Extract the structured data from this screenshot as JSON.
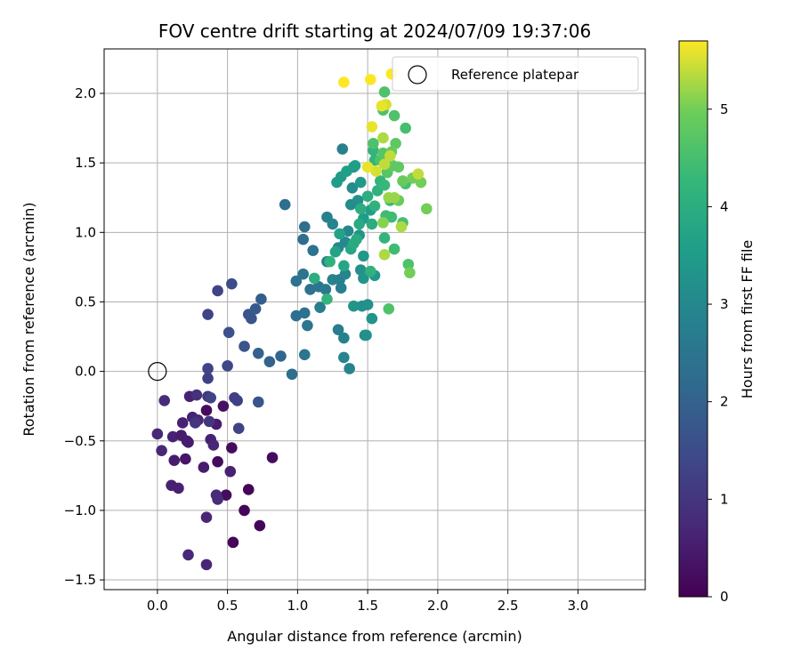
{
  "chart_data": {
    "type": "scatter",
    "title": "FOV centre drift starting at 2024/07/09 19:37:06",
    "xlabel": "Angular distance from reference (arcmin)",
    "ylabel": "Rotation from reference (arcmin)",
    "xlim": [
      -0.38,
      3.48
    ],
    "ylim": [
      -1.57,
      2.32
    ],
    "xticks": [
      0.0,
      0.5,
      1.0,
      1.5,
      2.0,
      2.5,
      3.0
    ],
    "xtick_labels": [
      "0.0",
      "0.5",
      "1.0",
      "1.5",
      "2.0",
      "2.5",
      "3.0"
    ],
    "yticks": [
      -1.5,
      -1.0,
      -0.5,
      0.0,
      0.5,
      1.0,
      1.5,
      2.0
    ],
    "ytick_labels": [
      "−1.5",
      "−1.0",
      "−0.5",
      "0.0",
      "0.5",
      "1.0",
      "1.5",
      "2.0"
    ],
    "grid": true,
    "legend": {
      "position": "top-right",
      "entries": [
        "Reference platepar"
      ]
    },
    "reference_point": {
      "x": 0.0,
      "y": 0.0
    },
    "colorbar": {
      "label": "Hours from first FF file",
      "colormap": "viridis",
      "range": [
        0,
        5.7
      ],
      "ticks": [
        0,
        1,
        2,
        3,
        4,
        5
      ],
      "tick_labels": [
        "0",
        "1",
        "2",
        "3",
        "4",
        "5"
      ]
    },
    "points": [
      {
        "x": 0.54,
        "y": -1.23,
        "h": 0.1
      },
      {
        "x": 0.73,
        "y": -1.11,
        "h": 0.1
      },
      {
        "x": 0.62,
        "y": -1.0,
        "h": 0.1
      },
      {
        "x": 0.65,
        "y": -0.85,
        "h": 0.1
      },
      {
        "x": 0.49,
        "y": -0.89,
        "h": 0.2
      },
      {
        "x": 0.82,
        "y": -0.62,
        "h": 0.2
      },
      {
        "x": 0.43,
        "y": -0.65,
        "h": 0.2
      },
      {
        "x": 0.53,
        "y": -0.55,
        "h": 0.2
      },
      {
        "x": 0.35,
        "y": -0.28,
        "h": 0.2
      },
      {
        "x": 0.47,
        "y": -0.25,
        "h": 0.3
      },
      {
        "x": 0.2,
        "y": -0.63,
        "h": 0.4
      },
      {
        "x": 0.21,
        "y": -0.5,
        "h": 0.4
      },
      {
        "x": 0.33,
        "y": -0.69,
        "h": 0.5
      },
      {
        "x": 0.52,
        "y": -0.72,
        "h": 0.6
      },
      {
        "x": 0.12,
        "y": -0.64,
        "h": 0.5
      },
      {
        "x": 0.11,
        "y": -0.47,
        "h": 0.6
      },
      {
        "x": 0.17,
        "y": -0.46,
        "h": 0.5
      },
      {
        "x": 0.22,
        "y": -0.51,
        "h": 0.5
      },
      {
        "x": 0.42,
        "y": -0.38,
        "h": 0.5
      },
      {
        "x": 0.38,
        "y": -0.49,
        "h": 0.6
      },
      {
        "x": 0.25,
        "y": -0.33,
        "h": 0.6
      },
      {
        "x": 0.18,
        "y": -0.37,
        "h": 0.6
      },
      {
        "x": 0.29,
        "y": -0.35,
        "h": 0.7
      },
      {
        "x": 0.23,
        "y": -0.18,
        "h": 0.6
      },
      {
        "x": 0.4,
        "y": -0.53,
        "h": 0.7
      },
      {
        "x": 0.1,
        "y": -0.82,
        "h": 0.6
      },
      {
        "x": 0.15,
        "y": -0.84,
        "h": 0.6
      },
      {
        "x": 0.35,
        "y": -1.05,
        "h": 0.7
      },
      {
        "x": 0.22,
        "y": -1.32,
        "h": 0.7
      },
      {
        "x": 0.35,
        "y": -1.39,
        "h": 0.7
      },
      {
        "x": 0.42,
        "y": -0.89,
        "h": 0.8
      },
      {
        "x": 0.43,
        "y": -0.92,
        "h": 0.8
      },
      {
        "x": 0.0,
        "y": -0.45,
        "h": 0.7
      },
      {
        "x": 0.03,
        "y": -0.57,
        "h": 0.7
      },
      {
        "x": 0.05,
        "y": -0.21,
        "h": 0.8
      },
      {
        "x": 0.28,
        "y": -0.17,
        "h": 0.9
      },
      {
        "x": 0.36,
        "y": -0.18,
        "h": 1.0
      },
      {
        "x": 0.27,
        "y": -0.37,
        "h": 1.0
      },
      {
        "x": 0.37,
        "y": -0.36,
        "h": 1.0
      },
      {
        "x": 0.55,
        "y": -0.19,
        "h": 1.2
      },
      {
        "x": 0.57,
        "y": -0.21,
        "h": 1.2
      },
      {
        "x": 0.58,
        "y": -0.41,
        "h": 1.3
      },
      {
        "x": 0.36,
        "y": -0.05,
        "h": 1.2
      },
      {
        "x": 0.36,
        "y": 0.02,
        "h": 1.3
      },
      {
        "x": 0.38,
        "y": -0.19,
        "h": 1.3
      },
      {
        "x": 0.5,
        "y": 0.04,
        "h": 1.4
      },
      {
        "x": 0.36,
        "y": 0.41,
        "h": 1.3
      },
      {
        "x": 0.43,
        "y": 0.58,
        "h": 1.3
      },
      {
        "x": 0.53,
        "y": 0.63,
        "h": 1.5
      },
      {
        "x": 0.51,
        "y": 0.28,
        "h": 1.6
      },
      {
        "x": 0.62,
        "y": 0.18,
        "h": 1.7
      },
      {
        "x": 0.65,
        "y": 0.41,
        "h": 1.7
      },
      {
        "x": 0.67,
        "y": 0.38,
        "h": 1.7
      },
      {
        "x": 0.7,
        "y": 0.45,
        "h": 1.8
      },
      {
        "x": 0.74,
        "y": 0.52,
        "h": 1.9
      },
      {
        "x": 0.72,
        "y": 0.13,
        "h": 2.0
      },
      {
        "x": 0.8,
        "y": 0.07,
        "h": 2.0
      },
      {
        "x": 0.88,
        "y": 0.11,
        "h": 2.1
      },
      {
        "x": 0.96,
        "y": -0.02,
        "h": 2.3
      },
      {
        "x": 0.72,
        "y": -0.22,
        "h": 1.7
      },
      {
        "x": 0.91,
        "y": 1.2,
        "h": 2.3
      },
      {
        "x": 1.05,
        "y": 0.12,
        "h": 2.5
      },
      {
        "x": 0.99,
        "y": 0.4,
        "h": 2.3
      },
      {
        "x": 1.05,
        "y": 0.42,
        "h": 2.4
      },
      {
        "x": 1.07,
        "y": 0.33,
        "h": 2.5
      },
      {
        "x": 0.99,
        "y": 0.65,
        "h": 2.4
      },
      {
        "x": 1.04,
        "y": 0.7,
        "h": 2.5
      },
      {
        "x": 1.09,
        "y": 0.59,
        "h": 2.4
      },
      {
        "x": 1.04,
        "y": 0.95,
        "h": 2.3
      },
      {
        "x": 1.05,
        "y": 1.04,
        "h": 2.3
      },
      {
        "x": 1.11,
        "y": 0.87,
        "h": 2.4
      },
      {
        "x": 1.15,
        "y": 0.61,
        "h": 2.5
      },
      {
        "x": 1.16,
        "y": 0.46,
        "h": 2.7
      },
      {
        "x": 1.2,
        "y": 0.59,
        "h": 2.6
      },
      {
        "x": 1.21,
        "y": 0.79,
        "h": 2.8
      },
      {
        "x": 1.21,
        "y": 1.11,
        "h": 2.8
      },
      {
        "x": 1.25,
        "y": 1.06,
        "h": 2.9
      },
      {
        "x": 1.25,
        "y": 0.66,
        "h": 2.9
      },
      {
        "x": 1.29,
        "y": 0.3,
        "h": 2.7
      },
      {
        "x": 1.33,
        "y": 0.24,
        "h": 2.8
      },
      {
        "x": 1.33,
        "y": 0.1,
        "h": 2.9
      },
      {
        "x": 1.37,
        "y": 0.02,
        "h": 2.9
      },
      {
        "x": 1.32,
        "y": 1.6,
        "h": 2.8
      },
      {
        "x": 1.29,
        "y": 0.89,
        "h": 3.0
      },
      {
        "x": 1.3,
        "y": 0.66,
        "h": 2.8
      },
      {
        "x": 1.31,
        "y": 0.6,
        "h": 2.7
      },
      {
        "x": 1.34,
        "y": 0.7,
        "h": 2.9
      },
      {
        "x": 1.34,
        "y": 0.93,
        "h": 3.0
      },
      {
        "x": 1.36,
        "y": 1.01,
        "h": 3.0
      },
      {
        "x": 1.38,
        "y": 1.2,
        "h": 3.1
      },
      {
        "x": 1.39,
        "y": 1.32,
        "h": 3.1
      },
      {
        "x": 1.4,
        "y": 1.47,
        "h": 3.2
      },
      {
        "x": 1.43,
        "y": 1.23,
        "h": 3.2
      },
      {
        "x": 1.44,
        "y": 0.98,
        "h": 3.3
      },
      {
        "x": 1.45,
        "y": 0.73,
        "h": 3.2
      },
      {
        "x": 1.47,
        "y": 0.67,
        "h": 3.3
      },
      {
        "x": 1.46,
        "y": 0.47,
        "h": 3.2
      },
      {
        "x": 1.48,
        "y": 0.26,
        "h": 3.1
      },
      {
        "x": 1.49,
        "y": 0.26,
        "h": 3.2
      },
      {
        "x": 1.4,
        "y": 0.47,
        "h": 3.3
      },
      {
        "x": 1.5,
        "y": 0.48,
        "h": 3.2
      },
      {
        "x": 1.53,
        "y": 0.38,
        "h": 3.3
      },
      {
        "x": 1.55,
        "y": 0.69,
        "h": 3.4
      },
      {
        "x": 1.47,
        "y": 0.83,
        "h": 3.4
      },
      {
        "x": 1.45,
        "y": 1.36,
        "h": 3.4
      },
      {
        "x": 1.47,
        "y": 1.1,
        "h": 3.5
      },
      {
        "x": 1.52,
        "y": 1.16,
        "h": 3.6
      },
      {
        "x": 1.28,
        "y": 1.36,
        "h": 3.5
      },
      {
        "x": 1.31,
        "y": 1.4,
        "h": 3.5
      },
      {
        "x": 1.35,
        "y": 1.44,
        "h": 3.6
      },
      {
        "x": 1.41,
        "y": 1.48,
        "h": 3.6
      },
      {
        "x": 1.27,
        "y": 0.86,
        "h": 3.7
      },
      {
        "x": 1.3,
        "y": 0.99,
        "h": 3.7
      },
      {
        "x": 1.33,
        "y": 0.76,
        "h": 3.8
      },
      {
        "x": 1.38,
        "y": 0.88,
        "h": 3.8
      },
      {
        "x": 1.4,
        "y": 0.92,
        "h": 3.9
      },
      {
        "x": 1.42,
        "y": 0.95,
        "h": 3.9
      },
      {
        "x": 1.44,
        "y": 1.06,
        "h": 3.9
      },
      {
        "x": 1.45,
        "y": 1.17,
        "h": 4.0
      },
      {
        "x": 1.5,
        "y": 1.26,
        "h": 4.0
      },
      {
        "x": 1.53,
        "y": 1.06,
        "h": 4.0
      },
      {
        "x": 1.55,
        "y": 1.19,
        "h": 4.1
      },
      {
        "x": 1.57,
        "y": 1.3,
        "h": 4.1
      },
      {
        "x": 1.59,
        "y": 1.37,
        "h": 4.2
      },
      {
        "x": 1.55,
        "y": 1.52,
        "h": 4.2
      },
      {
        "x": 1.54,
        "y": 1.59,
        "h": 4.2
      },
      {
        "x": 1.23,
        "y": 0.79,
        "h": 4.1
      },
      {
        "x": 1.21,
        "y": 0.52,
        "h": 4.2
      },
      {
        "x": 1.12,
        "y": 0.67,
        "h": 4.0
      },
      {
        "x": 1.52,
        "y": 0.72,
        "h": 4.1
      },
      {
        "x": 1.62,
        "y": 0.96,
        "h": 4.2
      },
      {
        "x": 1.62,
        "y": 1.34,
        "h": 4.3
      },
      {
        "x": 1.64,
        "y": 1.44,
        "h": 4.3
      },
      {
        "x": 1.66,
        "y": 1.23,
        "h": 4.3
      },
      {
        "x": 1.63,
        "y": 1.12,
        "h": 4.4
      },
      {
        "x": 1.67,
        "y": 1.11,
        "h": 4.4
      },
      {
        "x": 1.69,
        "y": 0.88,
        "h": 4.4
      },
      {
        "x": 1.75,
        "y": 1.07,
        "h": 4.5
      },
      {
        "x": 1.77,
        "y": 1.35,
        "h": 4.5
      },
      {
        "x": 1.79,
        "y": 0.77,
        "h": 4.6
      },
      {
        "x": 1.65,
        "y": 0.45,
        "h": 4.6
      },
      {
        "x": 1.54,
        "y": 1.64,
        "h": 4.6
      },
      {
        "x": 1.59,
        "y": 1.52,
        "h": 4.6
      },
      {
        "x": 1.61,
        "y": 1.57,
        "h": 4.7
      },
      {
        "x": 1.64,
        "y": 1.43,
        "h": 4.7
      },
      {
        "x": 1.68,
        "y": 1.48,
        "h": 4.8
      },
      {
        "x": 1.7,
        "y": 1.64,
        "h": 4.8
      },
      {
        "x": 1.72,
        "y": 1.47,
        "h": 4.8
      },
      {
        "x": 1.67,
        "y": 1.58,
        "h": 4.9
      },
      {
        "x": 1.75,
        "y": 1.37,
        "h": 4.9
      },
      {
        "x": 1.77,
        "y": 1.75,
        "h": 4.5
      },
      {
        "x": 1.61,
        "y": 1.88,
        "h": 4.6
      },
      {
        "x": 1.69,
        "y": 1.84,
        "h": 4.6
      },
      {
        "x": 1.62,
        "y": 2.01,
        "h": 4.6
      },
      {
        "x": 1.72,
        "y": 1.23,
        "h": 4.9
      },
      {
        "x": 1.8,
        "y": 0.71,
        "h": 5.0
      },
      {
        "x": 1.82,
        "y": 1.39,
        "h": 5.0
      },
      {
        "x": 1.88,
        "y": 1.36,
        "h": 5.0
      },
      {
        "x": 1.92,
        "y": 1.17,
        "h": 5.0
      },
      {
        "x": 1.61,
        "y": 1.07,
        "h": 5.1
      },
      {
        "x": 1.65,
        "y": 1.25,
        "h": 5.2
      },
      {
        "x": 1.69,
        "y": 1.25,
        "h": 5.2
      },
      {
        "x": 1.74,
        "y": 1.04,
        "h": 5.3
      },
      {
        "x": 1.62,
        "y": 0.84,
        "h": 5.3
      },
      {
        "x": 1.61,
        "y": 1.68,
        "h": 5.3
      },
      {
        "x": 1.66,
        "y": 1.55,
        "h": 5.4
      },
      {
        "x": 1.62,
        "y": 1.49,
        "h": 5.4
      },
      {
        "x": 1.86,
        "y": 1.42,
        "h": 5.4
      },
      {
        "x": 1.56,
        "y": 1.44,
        "h": 5.5
      },
      {
        "x": 1.5,
        "y": 1.47,
        "h": 5.6
      },
      {
        "x": 1.53,
        "y": 1.76,
        "h": 5.6
      },
      {
        "x": 1.63,
        "y": 1.92,
        "h": 5.5
      },
      {
        "x": 1.6,
        "y": 1.91,
        "h": 5.6
      },
      {
        "x": 1.33,
        "y": 2.08,
        "h": 5.7
      },
      {
        "x": 1.52,
        "y": 2.1,
        "h": 5.7
      },
      {
        "x": 1.67,
        "y": 2.14,
        "h": 5.7
      }
    ]
  }
}
